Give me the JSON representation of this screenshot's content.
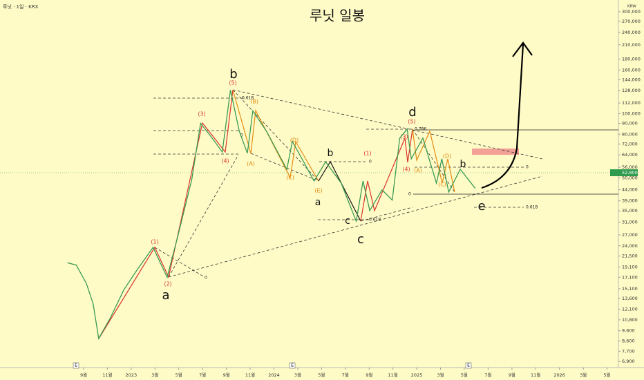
{
  "chart_data": {
    "type": "line",
    "title": "루닛 일봉",
    "symbol": "루닛 · 1일 · KRX",
    "currency": "KRW",
    "y_scale": "log",
    "ylim": [
      6550,
      328000
    ],
    "xlim": [
      2022.081,
      2026.413
    ],
    "last_price": {
      "value": 52800,
      "label": "52,800"
    },
    "series": [
      {
        "color": "#3a9a52",
        "x": [
          2022.553,
          2022.615,
          2022.686,
          2022.734,
          2022.772,
          2022.853,
          2022.948,
          2023.043,
          2023.153,
          2023.252,
          2023.329,
          2023.424,
          2023.486,
          2023.567,
          2023.638,
          2023.695,
          2023.757,
          2023.814,
          2023.852,
          2023.948,
          2024.09,
          2024.129,
          2024.21,
          2024.281,
          2024.362,
          2024.471,
          2024.576,
          2024.624,
          2024.671,
          2024.757,
          2024.829,
          2024.881,
          2024.933,
          2024.962,
          2025.043,
          2025.138,
          2025.176,
          2025.224,
          2025.305,
          2025.41
        ],
        "values": [
          20000,
          19500,
          16000,
          12800,
          8830,
          11000,
          14900,
          18600,
          23600,
          17100,
          27000,
          49000,
          90000,
          76700,
          66000,
          129000,
          82600,
          65200,
          103000,
          82600,
          54800,
          74000,
          59000,
          48300,
          59400,
          47200,
          31300,
          48300,
          35100,
          43900,
          39300,
          76700,
          84500,
          61400,
          76700,
          47200,
          61400,
          42900,
          54800,
          44600
        ]
      }
    ],
    "yticks": [
      {
        "value": 300000,
        "label": "300,000"
      },
      {
        "value": 270000,
        "label": "270,000"
      },
      {
        "value": 240000,
        "label": "240,000"
      },
      {
        "value": 210000,
        "label": "210,000"
      },
      {
        "value": 180000,
        "label": "180,000"
      },
      {
        "value": 160000,
        "label": "160,000"
      },
      {
        "value": 144000,
        "label": "144,000"
      },
      {
        "value": 128000,
        "label": "128,000"
      },
      {
        "value": 112000,
        "label": "112,000"
      },
      {
        "value": 100000,
        "label": "100,000"
      },
      {
        "value": 90000,
        "label": "90,000"
      },
      {
        "value": 80000,
        "label": "80,000"
      },
      {
        "value": 72000,
        "label": "72,000"
      },
      {
        "value": 64000,
        "label": "64,000"
      },
      {
        "value": 56000,
        "label": "56,000"
      },
      {
        "value": 50000,
        "label": "50,000"
      },
      {
        "value": 44000,
        "label": "44,000"
      },
      {
        "value": 39000,
        "label": "39,000"
      },
      {
        "value": 35000,
        "label": "35,000"
      },
      {
        "value": 31000,
        "label": "31,000"
      },
      {
        "value": 27000,
        "label": "27,000"
      },
      {
        "value": 24000,
        "label": "24,000"
      },
      {
        "value": 21500,
        "label": "21,500"
      },
      {
        "value": 19100,
        "label": "19,100"
      },
      {
        "value": 17100,
        "label": "17,100"
      },
      {
        "value": 15100,
        "label": "15,100"
      },
      {
        "value": 13600,
        "label": "13,600"
      },
      {
        "value": 12100,
        "label": "12,100"
      },
      {
        "value": 10800,
        "label": "10,800"
      },
      {
        "value": 9600,
        "label": "9,600"
      },
      {
        "value": 8600,
        "label": "8,600"
      },
      {
        "value": 7700,
        "label": "7,700"
      },
      {
        "value": 6900,
        "label": "6,900"
      }
    ],
    "xticks": [
      {
        "value": 2022.667,
        "label": "9월"
      },
      {
        "value": 2022.833,
        "label": "11월"
      },
      2023,
      {
        "value": 2023.167,
        "label": "3월"
      },
      {
        "value": 2023.333,
        "label": "5월"
      },
      {
        "value": 2023.5,
        "label": "7월"
      },
      {
        "value": 2023.667,
        "label": "9월"
      },
      {
        "value": 2023.833,
        "label": "11월"
      },
      2024,
      {
        "value": 2024.167,
        "label": "3월"
      },
      {
        "value": 2024.333,
        "label": "5월"
      },
      {
        "value": 2024.5,
        "label": "7월"
      },
      {
        "value": 2024.667,
        "label": "9월"
      },
      {
        "value": 2024.833,
        "label": "11월"
      },
      2025,
      {
        "value": 2025.167,
        "label": "3월"
      },
      {
        "value": 2025.333,
        "label": "5월"
      },
      {
        "value": 2025.5,
        "label": "7월"
      },
      {
        "value": 2025.667,
        "label": "9월"
      },
      {
        "value": 2025.833,
        "label": "11월"
      },
      2026,
      {
        "value": 2026.167,
        "label": "3월"
      },
      {
        "value": 2026.333,
        "label": "5월"
      }
    ],
    "annotations": [
      "a",
      "b",
      "a",
      "b",
      "c",
      "c",
      "d",
      "b",
      "e",
      "(1)",
      "(2)",
      "(3)",
      "(4)",
      "(5)",
      "(A)",
      "(B)",
      "(C)",
      "(D)",
      "(E)",
      "(1)",
      "(3)",
      "(4)",
      "(5)",
      "(A)",
      "(C)",
      "(D)",
      "0",
      "0",
      "0.618",
      "0",
      "0.618",
      "0",
      "0.786",
      "0",
      "0.618"
    ],
    "event_marker": "E"
  }
}
